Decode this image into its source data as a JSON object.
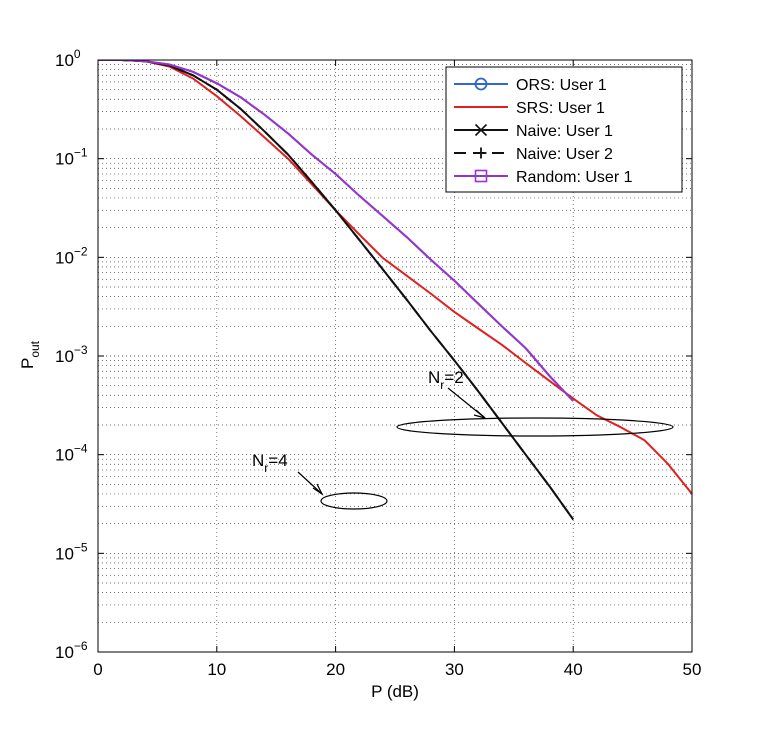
{
  "chart_data": {
    "type": "line",
    "xlabel": "P (dB)",
    "ylabel_main": "P",
    "ylabel_sub": "out",
    "xlim": [
      0,
      50
    ],
    "ylim_log10": [
      -6,
      0
    ],
    "yscale": "log",
    "grid": true,
    "legend_position": "top-right",
    "x_ticks": [
      "0",
      "10",
      "20",
      "30",
      "40",
      "50"
    ],
    "y_ticks": [
      {
        "base": "10",
        "exp": "0"
      },
      {
        "base": "10",
        "exp": "−1"
      },
      {
        "base": "10",
        "exp": "−2"
      },
      {
        "base": "10",
        "exp": "−3"
      },
      {
        "base": "10",
        "exp": "−4"
      },
      {
        "base": "10",
        "exp": "−5"
      },
      {
        "base": "10",
        "exp": "−6"
      }
    ],
    "series": [
      {
        "name": "ORS: User 1",
        "group": "Nr=2",
        "color": "#3366cc",
        "dash": "",
        "marker": "circle",
        "points": [
          [
            0,
            1
          ],
          [
            2,
            1
          ],
          [
            4,
            0.97
          ],
          [
            6,
            0.9
          ],
          [
            8,
            0.76
          ],
          [
            10,
            0.58
          ],
          [
            12,
            0.42
          ],
          [
            14,
            0.28
          ],
          [
            16,
            0.18
          ],
          [
            18,
            0.11
          ],
          [
            20,
            0.07
          ],
          [
            22,
            0.042
          ],
          [
            24,
            0.026
          ],
          [
            26,
            0.016
          ],
          [
            28,
            0.0095
          ],
          [
            30,
            0.0058
          ],
          [
            32,
            0.0034
          ],
          [
            34,
            0.002
          ],
          [
            36,
            0.0012
          ],
          [
            38,
            0.00063
          ],
          [
            40,
            0.00035
          ]
        ],
        "marker_points": []
      },
      {
        "name": "SRS: User 1",
        "group": "Nr=2",
        "color": "#e02020",
        "dash": "",
        "marker": "none",
        "points": [
          [
            0,
            1
          ],
          [
            2,
            1
          ],
          [
            4,
            0.97
          ],
          [
            6,
            0.86
          ],
          [
            8,
            0.65
          ],
          [
            10,
            0.43
          ],
          [
            12,
            0.27
          ],
          [
            14,
            0.165
          ],
          [
            16,
            0.1
          ],
          [
            18,
            0.055
          ],
          [
            20,
            0.03
          ],
          [
            22,
            0.017
          ],
          [
            24,
            0.0098
          ],
          [
            26,
            0.0065
          ],
          [
            28,
            0.0043
          ],
          [
            30,
            0.0028
          ],
          [
            32,
            0.0019
          ],
          [
            34,
            0.0013
          ],
          [
            36,
            0.00085
          ],
          [
            38,
            0.00056
          ],
          [
            40,
            0.00037
          ],
          [
            42,
            0.00025
          ],
          [
            44,
            0.00019
          ],
          [
            46,
            0.00014
          ],
          [
            48,
            8e-05
          ],
          [
            50,
            4e-05
          ]
        ],
        "marker_points": []
      },
      {
        "name": "Naive: User 1",
        "group": "Nr=2",
        "color": "#111111",
        "dash": "",
        "marker": "x",
        "points": [
          [
            0,
            1
          ],
          [
            2,
            1
          ],
          [
            4,
            0.97
          ],
          [
            6,
            0.88
          ],
          [
            8,
            0.7
          ],
          [
            10,
            0.5
          ],
          [
            12,
            0.32
          ],
          [
            14,
            0.19
          ],
          [
            16,
            0.11
          ],
          [
            18,
            0.058
          ],
          [
            20,
            0.03
          ],
          [
            22,
            0.015
          ],
          [
            24,
            0.0075
          ],
          [
            26,
            0.0037
          ],
          [
            28,
            0.0018
          ],
          [
            30,
            0.0009
          ],
          [
            32,
            0.00044
          ],
          [
            34,
            0.00021
          ],
          [
            36,
            0.0001
          ],
          [
            38,
            4.8e-05
          ],
          [
            40,
            2.2e-05
          ]
        ],
        "marker_points": []
      },
      {
        "name": "Naive: User 2",
        "group": "Nr=2",
        "color": "#111111",
        "dash": "12,7",
        "marker": "plus",
        "points": [
          [
            0,
            1
          ],
          [
            2,
            1
          ],
          [
            4,
            0.97
          ],
          [
            6,
            0.88
          ],
          [
            8,
            0.7
          ],
          [
            10,
            0.5
          ],
          [
            12,
            0.32
          ],
          [
            14,
            0.19
          ],
          [
            16,
            0.11
          ],
          [
            18,
            0.058
          ],
          [
            20,
            0.03
          ],
          [
            22,
            0.015
          ],
          [
            24,
            0.0075
          ],
          [
            26,
            0.0037
          ],
          [
            28,
            0.0018
          ],
          [
            30,
            0.0009
          ],
          [
            32,
            0.00044
          ],
          [
            34,
            0.00021
          ],
          [
            36,
            0.0001
          ],
          [
            38,
            4.8e-05
          ],
          [
            40,
            2.2e-05
          ]
        ],
        "marker_points": []
      },
      {
        "name": "Random: User 1",
        "group": "Nr=2",
        "color": "#9933cc",
        "dash": "",
        "marker": "square",
        "points": [
          [
            0,
            1
          ],
          [
            2,
            1
          ],
          [
            4,
            0.97
          ],
          [
            6,
            0.9
          ],
          [
            8,
            0.76
          ],
          [
            10,
            0.58
          ],
          [
            12,
            0.42
          ],
          [
            14,
            0.28
          ],
          [
            16,
            0.18
          ],
          [
            18,
            0.11
          ],
          [
            20,
            0.07
          ],
          [
            22,
            0.042
          ],
          [
            24,
            0.026
          ],
          [
            26,
            0.016
          ],
          [
            28,
            0.0095
          ],
          [
            30,
            0.0058
          ],
          [
            32,
            0.0034
          ],
          [
            34,
            0.002
          ],
          [
            36,
            0.0012
          ],
          [
            38,
            0.00063
          ],
          [
            40,
            0.00035
          ]
        ],
        "marker_points": []
      }
    ],
    "annotations": [
      {
        "base": "N",
        "sub": "r",
        "suffix": "=2"
      },
      {
        "base": "N",
        "sub": "r",
        "suffix": "=4"
      }
    ]
  }
}
